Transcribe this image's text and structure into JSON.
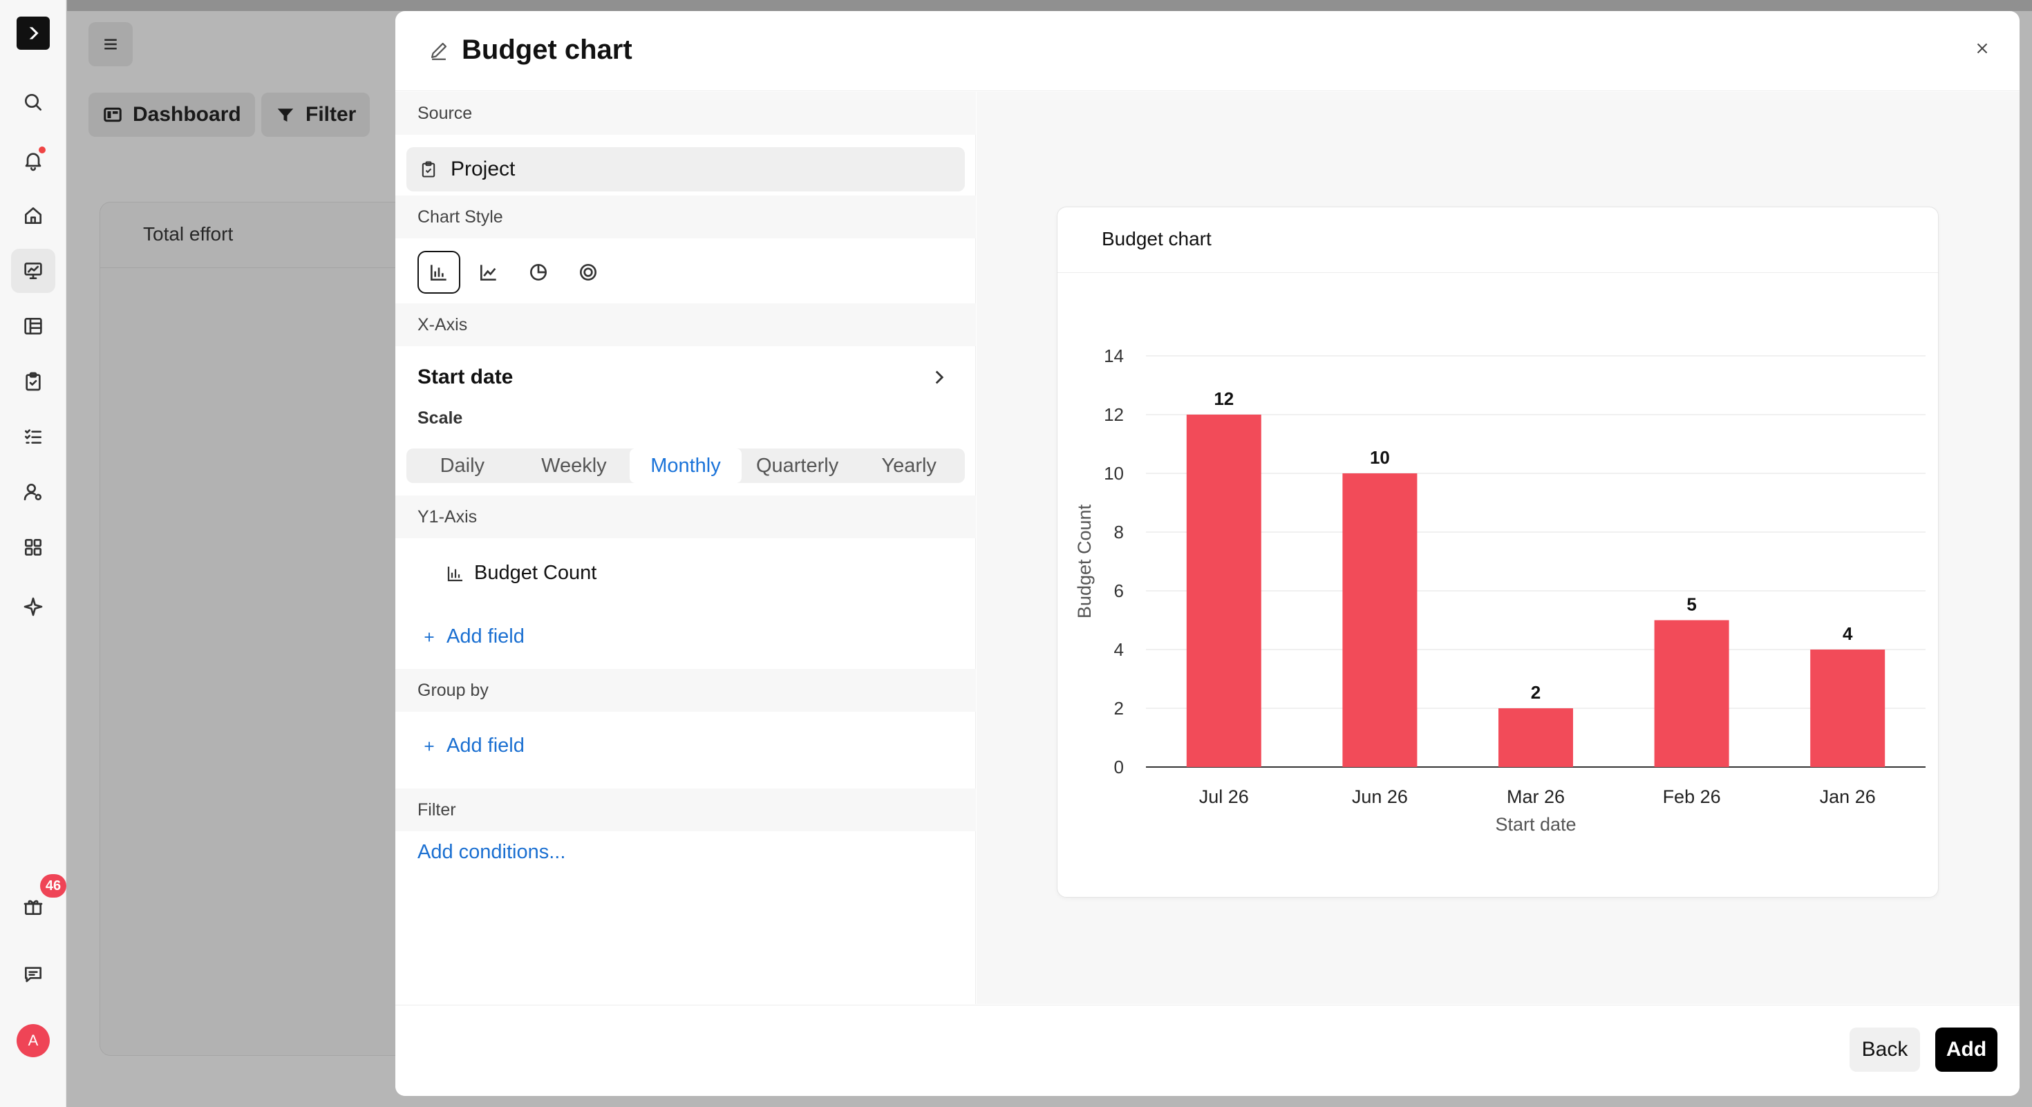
{
  "rail": {
    "items": [
      "search-icon",
      "bell-icon",
      "home-icon",
      "dashboard-icon",
      "table-icon",
      "clipboard-icon",
      "checklist-icon",
      "user-settings-icon",
      "apps-icon",
      "sparkle-icon"
    ],
    "gift_badge": "46",
    "avatar_initial": "A"
  },
  "background": {
    "dashboard_label": "Dashboard",
    "filter_label": "Filter",
    "panel_title": "Total effort"
  },
  "modal": {
    "title": "Budget chart",
    "source": {
      "heading": "Source",
      "value": "Project"
    },
    "chart_style": {
      "heading": "Chart Style",
      "options": [
        "bar-chart-icon",
        "line-chart-icon",
        "pie-chart-icon",
        "donut-chart-icon"
      ],
      "selected": "bar-chart-icon"
    },
    "x_axis": {
      "heading": "X-Axis",
      "field": "Start date",
      "scale_label": "Scale",
      "scales": [
        "Daily",
        "Weekly",
        "Monthly",
        "Quarterly",
        "Yearly"
      ],
      "selected_scale": "Monthly"
    },
    "y_axis": {
      "heading": "Y1-Axis",
      "field": "Budget Count",
      "add_label": "Add field"
    },
    "group_by": {
      "heading": "Group by",
      "add_label": "Add field"
    },
    "filter": {
      "heading": "Filter",
      "add_label": "Add conditions..."
    },
    "footer": {
      "back_label": "Back",
      "add_label": "Add"
    }
  },
  "preview": {
    "card_title": "Budget chart"
  },
  "chart_data": {
    "type": "bar",
    "categories": [
      "Jul 26",
      "Jun 26",
      "Mar 26",
      "Feb 26",
      "Jan 26"
    ],
    "values": [
      12,
      10,
      2,
      5,
      4
    ],
    "xlabel": "Start date",
    "ylabel": "Budget Count",
    "ylim": [
      0,
      14
    ],
    "yticks": [
      0,
      2,
      4,
      6,
      8,
      10,
      12,
      14
    ],
    "bar_color": "#f24b59",
    "grid": true,
    "data_labels": true
  },
  "colors": {
    "accent": "#1a6fd1",
    "bar": "#f24b59",
    "badge": "#ef4456"
  }
}
